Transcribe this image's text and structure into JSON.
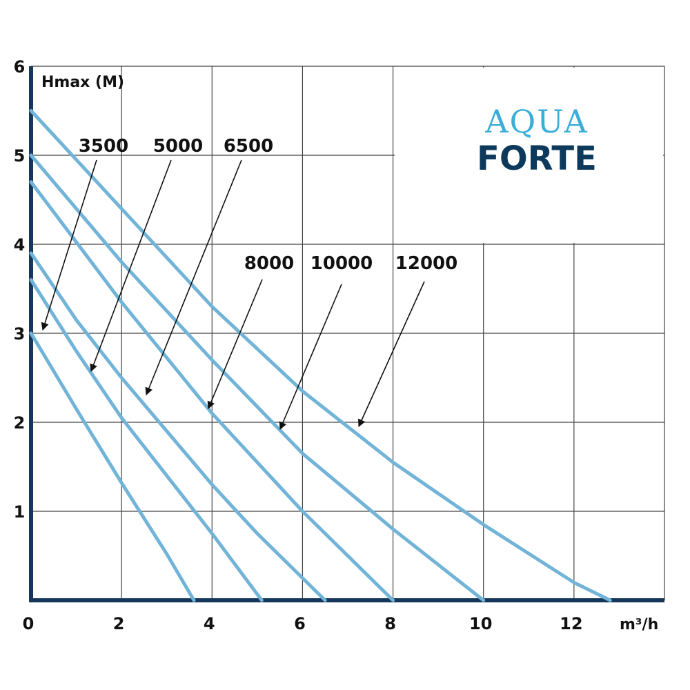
{
  "chart_data": {
    "type": "line",
    "y_label": "Hmax (M)",
    "x_label": "m³/h",
    "logo": {
      "top": "AQUA",
      "bottom": "FORTE"
    },
    "xlim": [
      0,
      14
    ],
    "ylim": [
      0,
      6
    ],
    "xticks": [
      0,
      2,
      4,
      6,
      8,
      10,
      12
    ],
    "yticks": [
      1,
      2,
      3,
      4,
      5,
      6
    ],
    "grid": true,
    "series": [
      {
        "name": "3500",
        "color": "#72b4d8",
        "x": [
          0,
          1,
          2,
          3,
          3.6
        ],
        "values": [
          3.0,
          2.15,
          1.32,
          0.52,
          0
        ]
      },
      {
        "name": "5000",
        "color": "#72b4d8",
        "x": [
          0,
          1,
          2,
          3,
          4,
          5.1
        ],
        "values": [
          3.6,
          2.8,
          2.05,
          1.4,
          0.75,
          0
        ]
      },
      {
        "name": "6500",
        "color": "#72b4d8",
        "x": [
          0,
          1,
          2,
          3,
          4,
          5,
          6.5
        ],
        "values": [
          3.9,
          3.15,
          2.5,
          1.9,
          1.3,
          0.75,
          0
        ]
      },
      {
        "name": "8000",
        "color": "#72b4d8",
        "x": [
          0,
          2,
          4,
          6,
          8
        ],
        "values": [
          4.7,
          3.35,
          2.1,
          1.0,
          0
        ]
      },
      {
        "name": "10000",
        "color": "#72b4d8",
        "x": [
          0,
          2,
          4,
          6,
          8,
          10
        ],
        "values": [
          5.0,
          3.8,
          2.7,
          1.65,
          0.8,
          0
        ]
      },
      {
        "name": "12000",
        "color": "#72b4d8",
        "x": [
          0,
          2,
          4,
          6,
          8,
          10,
          12,
          12.8
        ],
        "values": [
          5.5,
          4.4,
          3.3,
          2.35,
          1.55,
          0.85,
          0.2,
          0
        ]
      }
    ]
  }
}
